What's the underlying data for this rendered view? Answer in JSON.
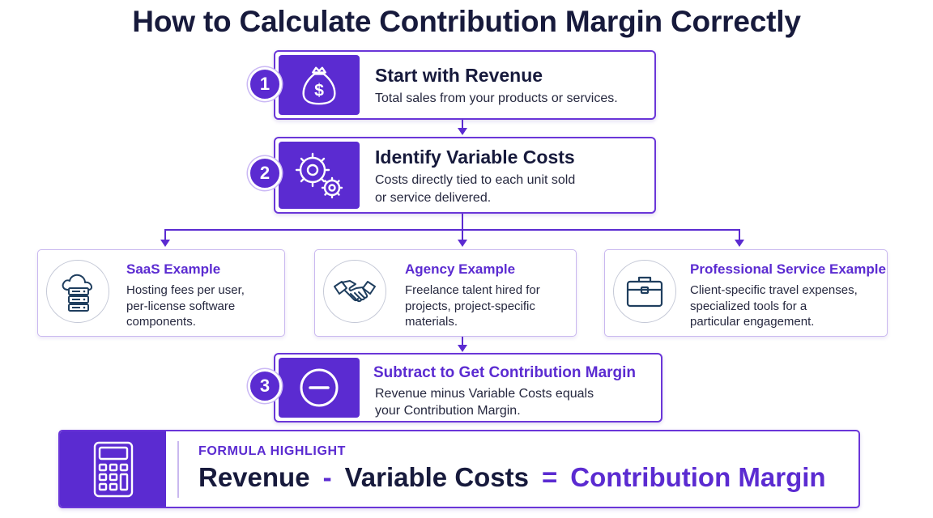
{
  "title": "How to Calculate Contribution Margin Correctly",
  "colors": {
    "accent": "#5b2bd1",
    "border": "#6a36d8",
    "text": "#171a3c"
  },
  "steps": [
    {
      "number": "1",
      "icon": "money-bag-icon",
      "title": "Start with Revenue",
      "description": "Total sales from your products or services."
    },
    {
      "number": "2",
      "icon": "gears-icon",
      "title": "Identify Variable Costs",
      "description_lines": [
        "Costs directly tied to each unit sold",
        "or service delivered."
      ]
    },
    {
      "number": "3",
      "icon": "minus-circle-icon",
      "title": "Subtract to Get Contribution Margin",
      "description_lines": [
        "Revenue minus Variable Costs equals",
        "your Contribution Margin."
      ]
    }
  ],
  "examples": [
    {
      "icon": "cloud-server-icon",
      "title": "SaaS Example",
      "lines": [
        "Hosting fees per user,",
        "per-license software",
        "components."
      ]
    },
    {
      "icon": "handshake-icon",
      "title": "Agency Example",
      "lines": [
        "Freelance talent hired for",
        "projects, project-specific",
        "materials."
      ]
    },
    {
      "icon": "briefcase-icon",
      "title": "Professional Service Example",
      "lines": [
        "Client-specific travel expenses,",
        "specialized tools for a",
        "particular engagement."
      ]
    }
  ],
  "formula": {
    "icon": "calculator-icon",
    "label": "FORMULA HIGHLIGHT",
    "term1": "Revenue",
    "op1": "-",
    "term2": "Variable Costs",
    "op2": "=",
    "result": "Contribution Margin"
  }
}
